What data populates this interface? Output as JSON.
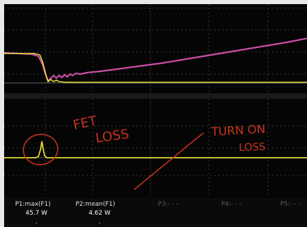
{
  "annotations": {
    "fet_line1": "FET",
    "fet_line2": "LOSS",
    "turn_line1": "TURN ON",
    "turn_line2": "LOSS"
  },
  "params": [
    {
      "label": "P1:max(F1)",
      "value": "45.7 W",
      "value2": "."
    },
    {
      "label": "P2:mean(F1)",
      "value": "4.62 W",
      "value2": "."
    },
    {
      "label": "P3:- - -",
      "value": "",
      "value2": ""
    },
    {
      "label": "P4:- - -",
      "value": "",
      "value2": ""
    },
    {
      "label": "P5:- - -",
      "value": "",
      "value2": ""
    }
  ],
  "colors": {
    "trace_yellow": "#e8df3a",
    "trace_magenta": "#d24fa8",
    "annotation_red": "#c8321e",
    "grid": "#6a6a6a"
  }
}
